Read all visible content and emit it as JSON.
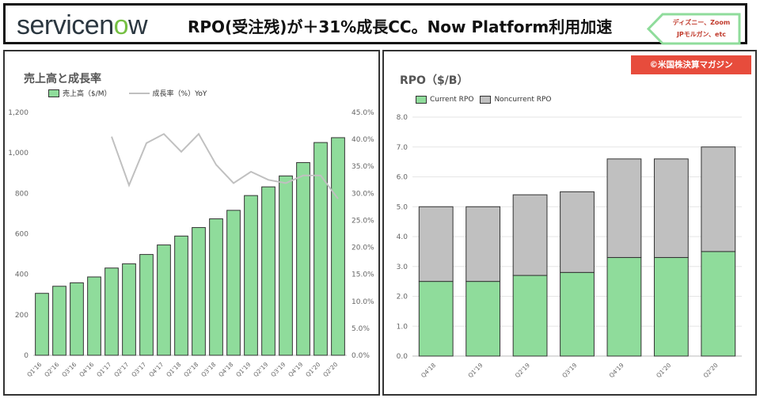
{
  "header": {
    "logo_text_pre": "servicen",
    "logo_text_o": "o",
    "logo_text_post": "w",
    "headline": "RPO(受注残)が＋31%成長CC。Now Platform利用加速",
    "callout_line1": "ディズニー、Zoom",
    "callout_line2": "JPモルガン、etc"
  },
  "copyright": "©米国株決算マガジン",
  "colors": {
    "green": "#8fdc9b",
    "gray": "#c0c0c0",
    "dark": "#333333"
  },
  "chart_data": [
    {
      "type": "bar",
      "title": "売上高と成長率",
      "legend": [
        "売上高（$/M）",
        "成長率（%）YoY"
      ],
      "legend_placement": "top",
      "categories": [
        "Q1'16",
        "Q2'16",
        "Q3'16",
        "Q4'16",
        "Q1'17",
        "Q2'17",
        "Q3'17",
        "Q4'17",
        "Q1'18",
        "Q2'18",
        "Q3'18",
        "Q4'18",
        "Q1'19",
        "Q2'19",
        "Q3'19",
        "Q4'19",
        "Q1'20",
        "Q2'20"
      ],
      "series": [
        {
          "name": "売上高（$/M）",
          "type": "bar",
          "axis": "left",
          "values": [
            306,
            341,
            358,
            387,
            431,
            452,
            498,
            545,
            589,
            631,
            674,
            716,
            789,
            832,
            886,
            952,
            1051,
            1075
          ]
        },
        {
          "name": "成長率（%）YoY",
          "type": "line",
          "axis": "right",
          "values": [
            null,
            null,
            null,
            null,
            40.5,
            31.5,
            39.3,
            41.0,
            37.7,
            41.0,
            35.3,
            31.9,
            34.0,
            32.5,
            31.9,
            33.3,
            33.3,
            29.0
          ]
        }
      ],
      "ylim": [
        0,
        1200
      ],
      "yticks": [
        "0",
        "200",
        "400",
        "600",
        "800",
        "1,000",
        "1,200"
      ],
      "y2lim": [
        0,
        45
      ],
      "y2ticks": [
        "0.0%",
        "5.0%",
        "10.0%",
        "15.0%",
        "20.0%",
        "25.0%",
        "30.0%",
        "35.0%",
        "40.0%",
        "45.0%"
      ],
      "grid": false
    },
    {
      "type": "bar",
      "stacked": true,
      "title": "RPO（$/B）",
      "legend": [
        "Current RPO",
        "Noncurrent RPO"
      ],
      "legend_placement": "top-left",
      "categories": [
        "Q4'18",
        "Q1'19",
        "Q2'19",
        "Q3'19",
        "Q4'19",
        "Q1'20",
        "Q2'20"
      ],
      "series": [
        {
          "name": "Current RPO",
          "values": [
            2.5,
            2.5,
            2.7,
            2.8,
            3.3,
            3.3,
            3.5
          ]
        },
        {
          "name": "Noncurrent RPO",
          "values": [
            2.5,
            2.5,
            2.7,
            2.7,
            3.3,
            3.3,
            3.5
          ]
        }
      ],
      "ylim": [
        0,
        8
      ],
      "yticks": [
        "0.0",
        "1.0",
        "2.0",
        "3.0",
        "4.0",
        "5.0",
        "6.0",
        "7.0",
        "8.0"
      ],
      "grid": true
    }
  ]
}
